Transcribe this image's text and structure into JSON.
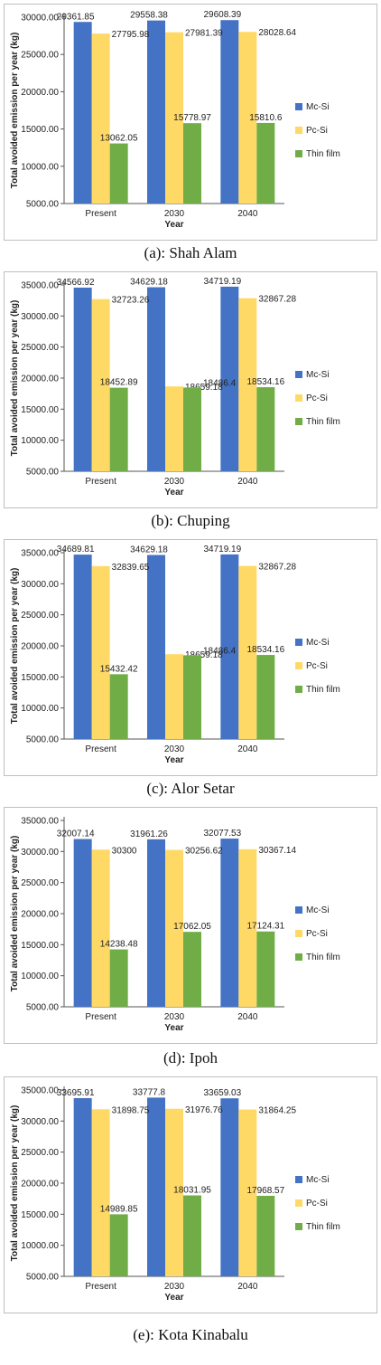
{
  "colors": {
    "Mc-Si": "#4472C4",
    "Pc-Si": "#FFD966",
    "Thin film": "#70AD47"
  },
  "chart_data": [
    {
      "type": "bar",
      "caption": "(a): Shah Alam",
      "xlabel": "Year",
      "ylabel": "Total avoided emission per year (kg)",
      "categories": [
        "Present",
        "2030",
        "2040"
      ],
      "ylim": [
        5000,
        30000
      ],
      "ytick_labels": [
        "5000.00",
        "10000.00",
        "15000.00",
        "20000.00",
        "25000.00",
        "30000.00"
      ],
      "legend_position": "right",
      "series": [
        {
          "name": "Mc-Si",
          "values": [
            29361.85,
            29558.38,
            29608.39
          ],
          "labels": [
            "29361.85",
            "29558.38",
            "29608.39"
          ]
        },
        {
          "name": "Pc-Si",
          "values": [
            27795.98,
            27981.39,
            28028.64
          ],
          "labels": [
            "27795.98",
            "27981.39",
            "28028.64"
          ]
        },
        {
          "name": "Thin film",
          "values": [
            13062.05,
            15778.97,
            15810.6
          ],
          "labels": [
            "13062.05",
            "15778.97",
            "15810.6"
          ]
        }
      ]
    },
    {
      "type": "bar",
      "caption": "(b): Chuping",
      "xlabel": "Year",
      "ylabel": "Total avoided emission per year (kg)",
      "categories": [
        "Present",
        "2030",
        "2040"
      ],
      "ylim": [
        5000,
        35000
      ],
      "ytick_labels": [
        "5000.00",
        "10000.00",
        "15000.00",
        "20000.00",
        "25000.00",
        "30000.00",
        "35000.00"
      ],
      "legend_position": "right",
      "series": [
        {
          "name": "Mc-Si",
          "values": [
            34566.92,
            34629.18,
            34719.19
          ],
          "labels": [
            "34566.92",
            "34629.18",
            "34719.19"
          ]
        },
        {
          "name": "Pc-Si",
          "values": [
            32723.26,
            18659.18,
            32867.28
          ],
          "labels": [
            "32723.26",
            "18659.18",
            "32867.28"
          ]
        },
        {
          "name": "Thin film",
          "values": [
            18452.89,
            18486.4,
            18534.16
          ],
          "labels": [
            "18452.89",
            "18486.4",
            "18534.16"
          ]
        }
      ]
    },
    {
      "type": "bar",
      "caption": "(c): Alor Setar",
      "xlabel": "Year",
      "ylabel": "Total avoided emission per year (kg)",
      "categories": [
        "Present",
        "2030",
        "2040"
      ],
      "ylim": [
        5000,
        35000
      ],
      "ytick_labels": [
        "5000.00",
        "10000.00",
        "15000.00",
        "20000.00",
        "25000.00",
        "30000.00",
        "35000.00"
      ],
      "legend_position": "right",
      "series": [
        {
          "name": "Mc-Si",
          "values": [
            34689.81,
            34629.18,
            34719.19
          ],
          "labels": [
            "34689.81",
            "34629.18",
            "34719.19"
          ]
        },
        {
          "name": "Pc-Si",
          "values": [
            32839.65,
            18659.18,
            32867.28
          ],
          "labels": [
            "32839.65",
            "18659.18",
            "32867.28"
          ]
        },
        {
          "name": "Thin film",
          "values": [
            15432.42,
            18486.4,
            18534.16
          ],
          "labels": [
            "15432.42",
            "18486.4",
            "18534.16"
          ]
        }
      ]
    },
    {
      "type": "bar",
      "caption": "(d): Ipoh",
      "xlabel": "Year",
      "ylabel": "Total avoided emission per year (kg)",
      "categories": [
        "Present",
        "2030",
        "2040"
      ],
      "ylim": [
        5000,
        35000
      ],
      "ytick_labels": [
        "5000.00",
        "10000.00",
        "15000.00",
        "20000.00",
        "25000.00",
        "30000.00",
        "35000.00"
      ],
      "legend_position": "right",
      "series": [
        {
          "name": "Mc-Si",
          "values": [
            32007.14,
            31961.26,
            32077.53
          ],
          "labels": [
            "32007.14",
            "31961.26",
            "32077.53"
          ]
        },
        {
          "name": "Pc-Si",
          "values": [
            30300,
            30256.62,
            30367.14
          ],
          "labels": [
            "30300",
            "30256.62",
            "30367.14"
          ]
        },
        {
          "name": "Thin film",
          "values": [
            14238.48,
            17062.05,
            17124.31
          ],
          "labels": [
            "14238.48",
            "17062.05",
            "17124.31"
          ]
        }
      ]
    },
    {
      "type": "bar",
      "caption": "(e): Kota Kinabalu",
      "xlabel": "Year",
      "ylabel": "Total avoided emission per year (kg)",
      "categories": [
        "Present",
        "2030",
        "2040"
      ],
      "ylim": [
        5000,
        35000
      ],
      "ytick_labels": [
        "5000.00",
        "10000.00",
        "15000.00",
        "20000.00",
        "25000.00",
        "30000.00",
        "35000.00"
      ],
      "legend_position": "right",
      "series": [
        {
          "name": "Mc-Si",
          "values": [
            33695.91,
            33777.8,
            33659.03
          ],
          "labels": [
            "33695.91",
            "33777.8",
            "33659.03"
          ]
        },
        {
          "name": "Pc-Si",
          "values": [
            31898.75,
            31976.76,
            31864.25
          ],
          "labels": [
            "31898.75",
            "31976.76",
            "31864.25"
          ]
        },
        {
          "name": "Thin film",
          "values": [
            14989.85,
            18031.95,
            17968.57
          ],
          "labels": [
            "14989.85",
            "18031.95",
            "17968.57"
          ]
        }
      ]
    }
  ]
}
